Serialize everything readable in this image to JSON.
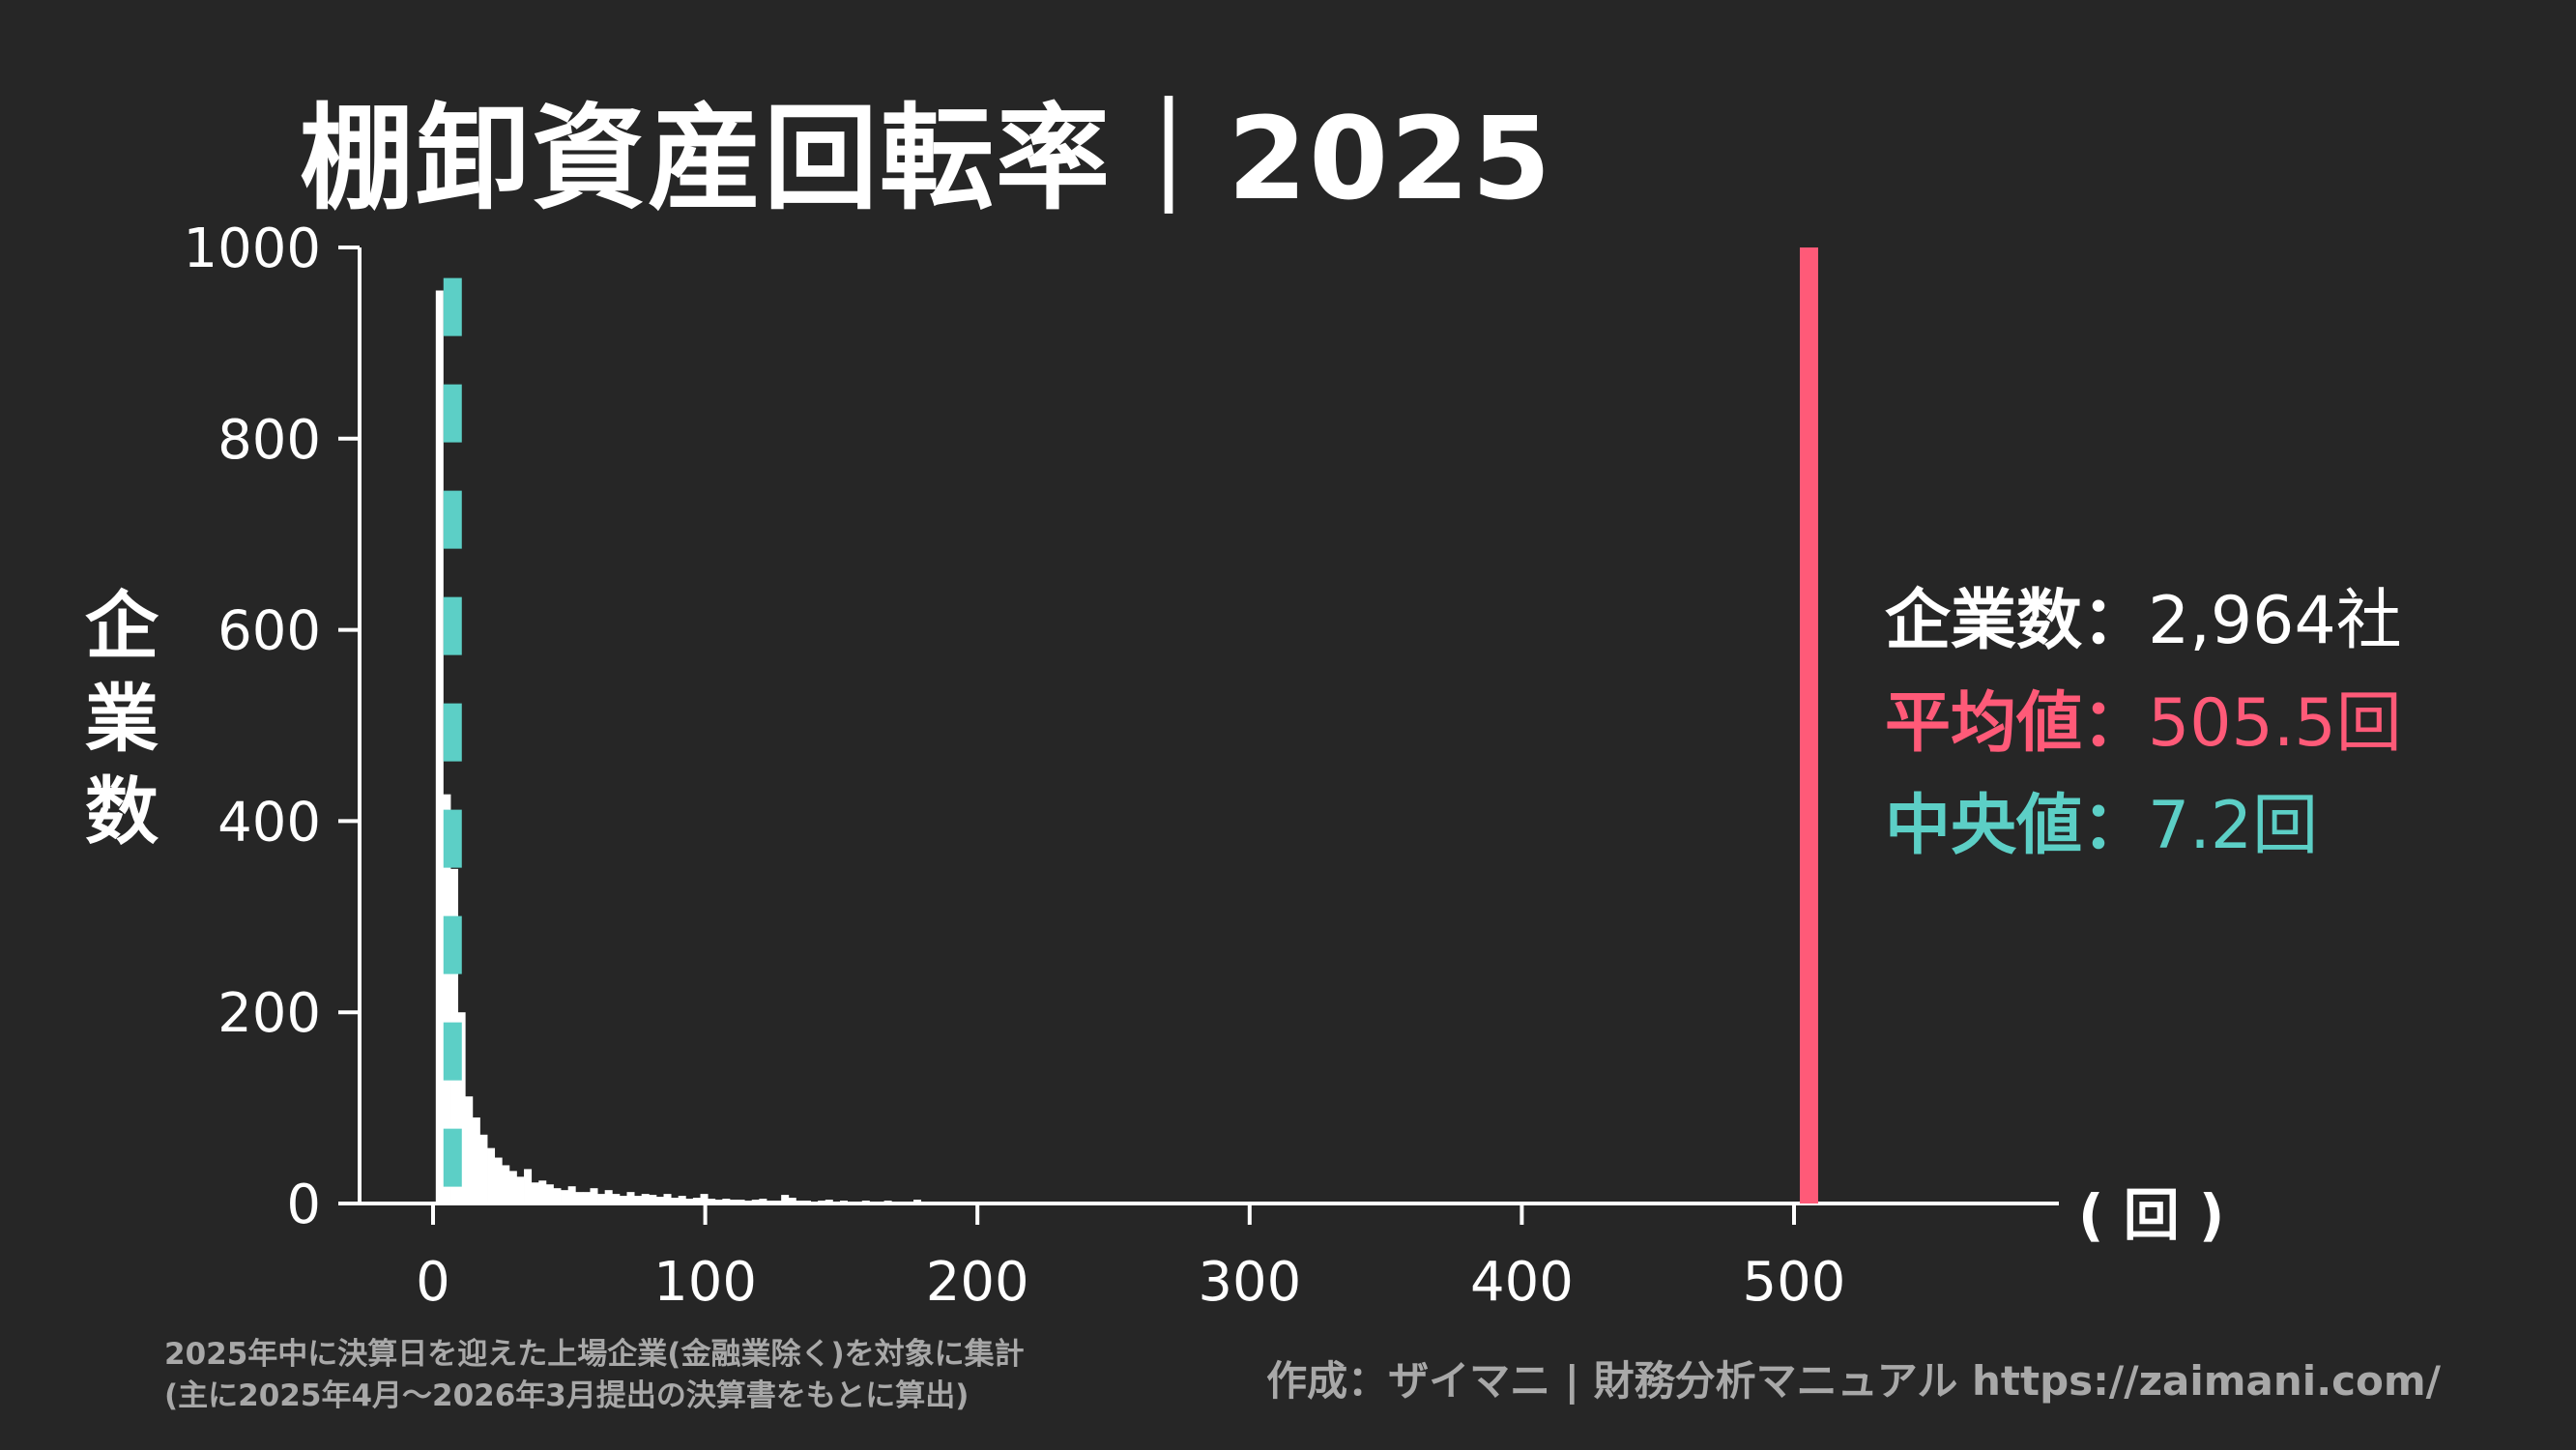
{
  "title": "棚卸資産回転率｜2025",
  "ylabel_chars": [
    "企",
    "業",
    "数"
  ],
  "unit_label": "( 回 )",
  "stats": {
    "count": {
      "label": "企業数",
      "sep": "：",
      "value": "2,964社",
      "color": "#ffffff"
    },
    "mean": {
      "label": "平均値",
      "sep": "：",
      "value": "505.5回",
      "color": "#ff5a78"
    },
    "median": {
      "label": "中央値",
      "sep": "：",
      "value": "7.2回",
      "color": "#5ccfc6"
    }
  },
  "note_line1": "2025年中に決算日を迎えた上場企業(金融業除く)を対象に集計",
  "note_line2": "(主に2025年4月〜2026年3月提出の決算書をもとに算出)",
  "credit": "作成：ザイマニ | 財務分析マニュアル https://zaimani.com/",
  "chart_data": {
    "type": "bar",
    "title": "棚卸資産回転率｜2025",
    "xlabel": "( 回 )",
    "ylabel": "企業数",
    "xlim": [
      -35,
      600
    ],
    "ylim": [
      0,
      1000
    ],
    "xticks": [
      0,
      100,
      200,
      300,
      400,
      500
    ],
    "yticks": [
      0,
      200,
      400,
      600,
      800,
      1000
    ],
    "bin_width": 2.7,
    "bin_start": 1,
    "counts": [
      955,
      428,
      350,
      200,
      112,
      90,
      72,
      58,
      48,
      40,
      34,
      28,
      36,
      22,
      24,
      20,
      16,
      14,
      18,
      12,
      12,
      16,
      10,
      14,
      10,
      8,
      12,
      8,
      10,
      9,
      7,
      10,
      6,
      8,
      5,
      6,
      10,
      5,
      4,
      5,
      4,
      4,
      3,
      4,
      5,
      3,
      3,
      9,
      6,
      3,
      3,
      2,
      3,
      4,
      2,
      3,
      2,
      2,
      3,
      2,
      2,
      3,
      2,
      2,
      2,
      4,
      2,
      2,
      2,
      2,
      2,
      2,
      1,
      2,
      1,
      2,
      2,
      1,
      1,
      2,
      1,
      2,
      1,
      1,
      2,
      1,
      1,
      1,
      2,
      1,
      1,
      1,
      1,
      1,
      1,
      1,
      1,
      1,
      1,
      1,
      1,
      1,
      1,
      1,
      1,
      1,
      1,
      1,
      1,
      1,
      1,
      1,
      1,
      1,
      1,
      1,
      1,
      1,
      1,
      1,
      1,
      1,
      1,
      2,
      1,
      1,
      1,
      1,
      1,
      1,
      1,
      1,
      1,
      1,
      1,
      1,
      1
    ],
    "mean": 505.5,
    "median": 7.2,
    "count": 2964,
    "colors": {
      "bars": "#ffffff",
      "mean": "#ff5a78",
      "median": "#5ccfc6",
      "axis": "#ffffff"
    }
  }
}
